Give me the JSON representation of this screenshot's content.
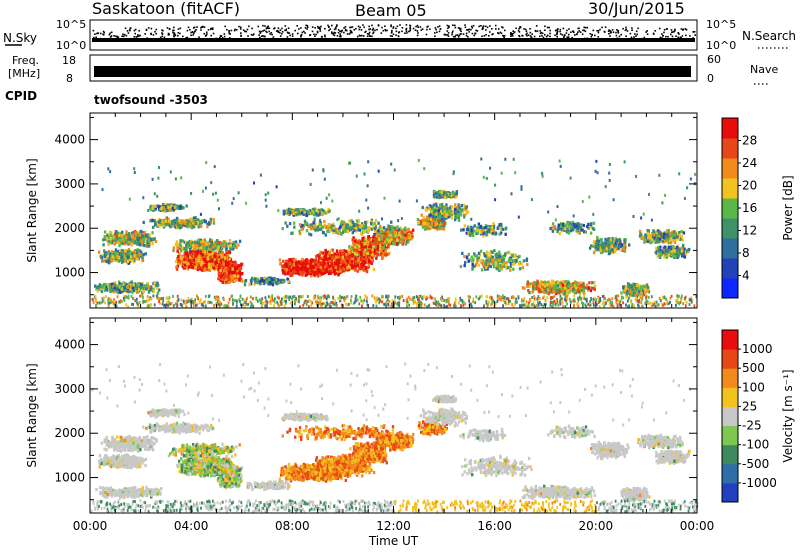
{
  "header": {
    "station": "Saskatoon (fitACF)",
    "beam": "Beam 05",
    "date": "30/Jun/2015"
  },
  "top_panels": {
    "nsky_label": "N.Sky",
    "nsearch_label": "N.Search",
    "nsky_ticks": [
      "10^5",
      "10^0"
    ],
    "freq_label_1": "Freq.",
    "freq_label_2": "[MHz]",
    "freq_ticks": [
      "18",
      "8"
    ],
    "nave_label": "Nave",
    "nave_ticks": [
      "60",
      "0"
    ],
    "cpid_label": "CPID",
    "cpid_value": "twofsound -3503"
  },
  "chart_data": [
    {
      "type": "heatmap",
      "name": "power",
      "ylabel": "Slant Range [km]",
      "yticks": [
        1000,
        2000,
        3000,
        4000
      ],
      "ylim": [
        200,
        4600
      ],
      "xlim": [
        0,
        24
      ],
      "colorbar_label": "Power [dB]",
      "colorbar_ticks": [
        4,
        8,
        12,
        16,
        20,
        24,
        28
      ],
      "colorbar_range": [
        0,
        32
      ],
      "colors": [
        "#0a28ff",
        "#2342b8",
        "#2e6fa0",
        "#3d9268",
        "#5ab84a",
        "#f2c21e",
        "#f28a1c",
        "#e84818",
        "#e80c0c"
      ]
    },
    {
      "type": "heatmap",
      "name": "velocity",
      "ylabel": "Slant Range [km]",
      "yticks": [
        1000,
        2000,
        3000,
        4000
      ],
      "ylim": [
        200,
        4600
      ],
      "xlim": [
        0,
        24
      ],
      "xlabel": "Time UT",
      "xticks": [
        "00:00",
        "04:00",
        "08:00",
        "12:00",
        "16:00",
        "20:00",
        "00:00"
      ],
      "colorbar_label": "Velocity [m s⁻¹]",
      "colorbar_ticks": [
        "1000",
        "500",
        "100",
        "25",
        "-25",
        "-100",
        "-500",
        "-1000"
      ],
      "colors": [
        "#2040c0",
        "#2e6ea8",
        "#3d8a60",
        "#7cc850",
        "#c8c8c8",
        "#f2c21e",
        "#f28a1c",
        "#e84818",
        "#e80c0c"
      ]
    }
  ]
}
